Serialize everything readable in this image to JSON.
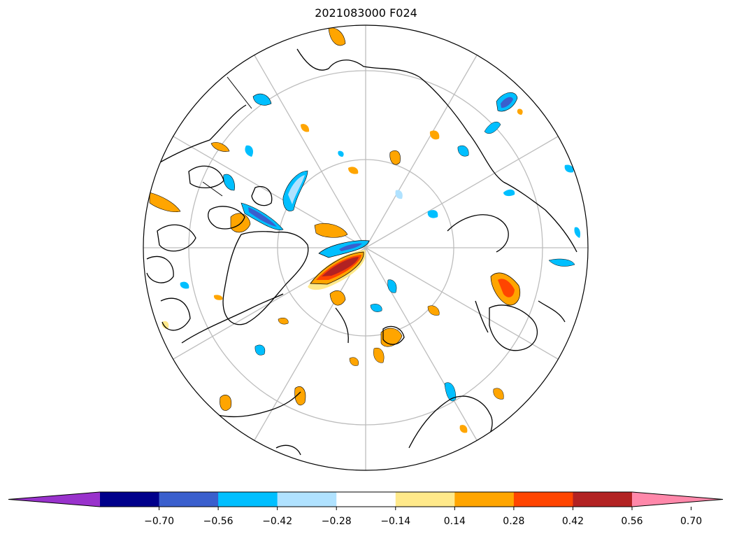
{
  "title": "2021083000 F024",
  "map": {
    "projection": "north-polar-stereographic",
    "graticule": "gray",
    "coastlines": "black"
  },
  "colorbar": {
    "extend": "both",
    "colors": [
      "#9932cc",
      "#00008b",
      "#3a5fcd",
      "#00bfff",
      "#b0e2ff",
      "#ffffff",
      "#ffe98a",
      "#ffa500",
      "#ff4500",
      "#b22222",
      "#ff88aa"
    ],
    "ticks": [
      "−0.70",
      "−0.56",
      "−0.42",
      "−0.28",
      "−0.14",
      "0.14",
      "0.28",
      "0.42",
      "0.56",
      "0.70"
    ]
  }
}
